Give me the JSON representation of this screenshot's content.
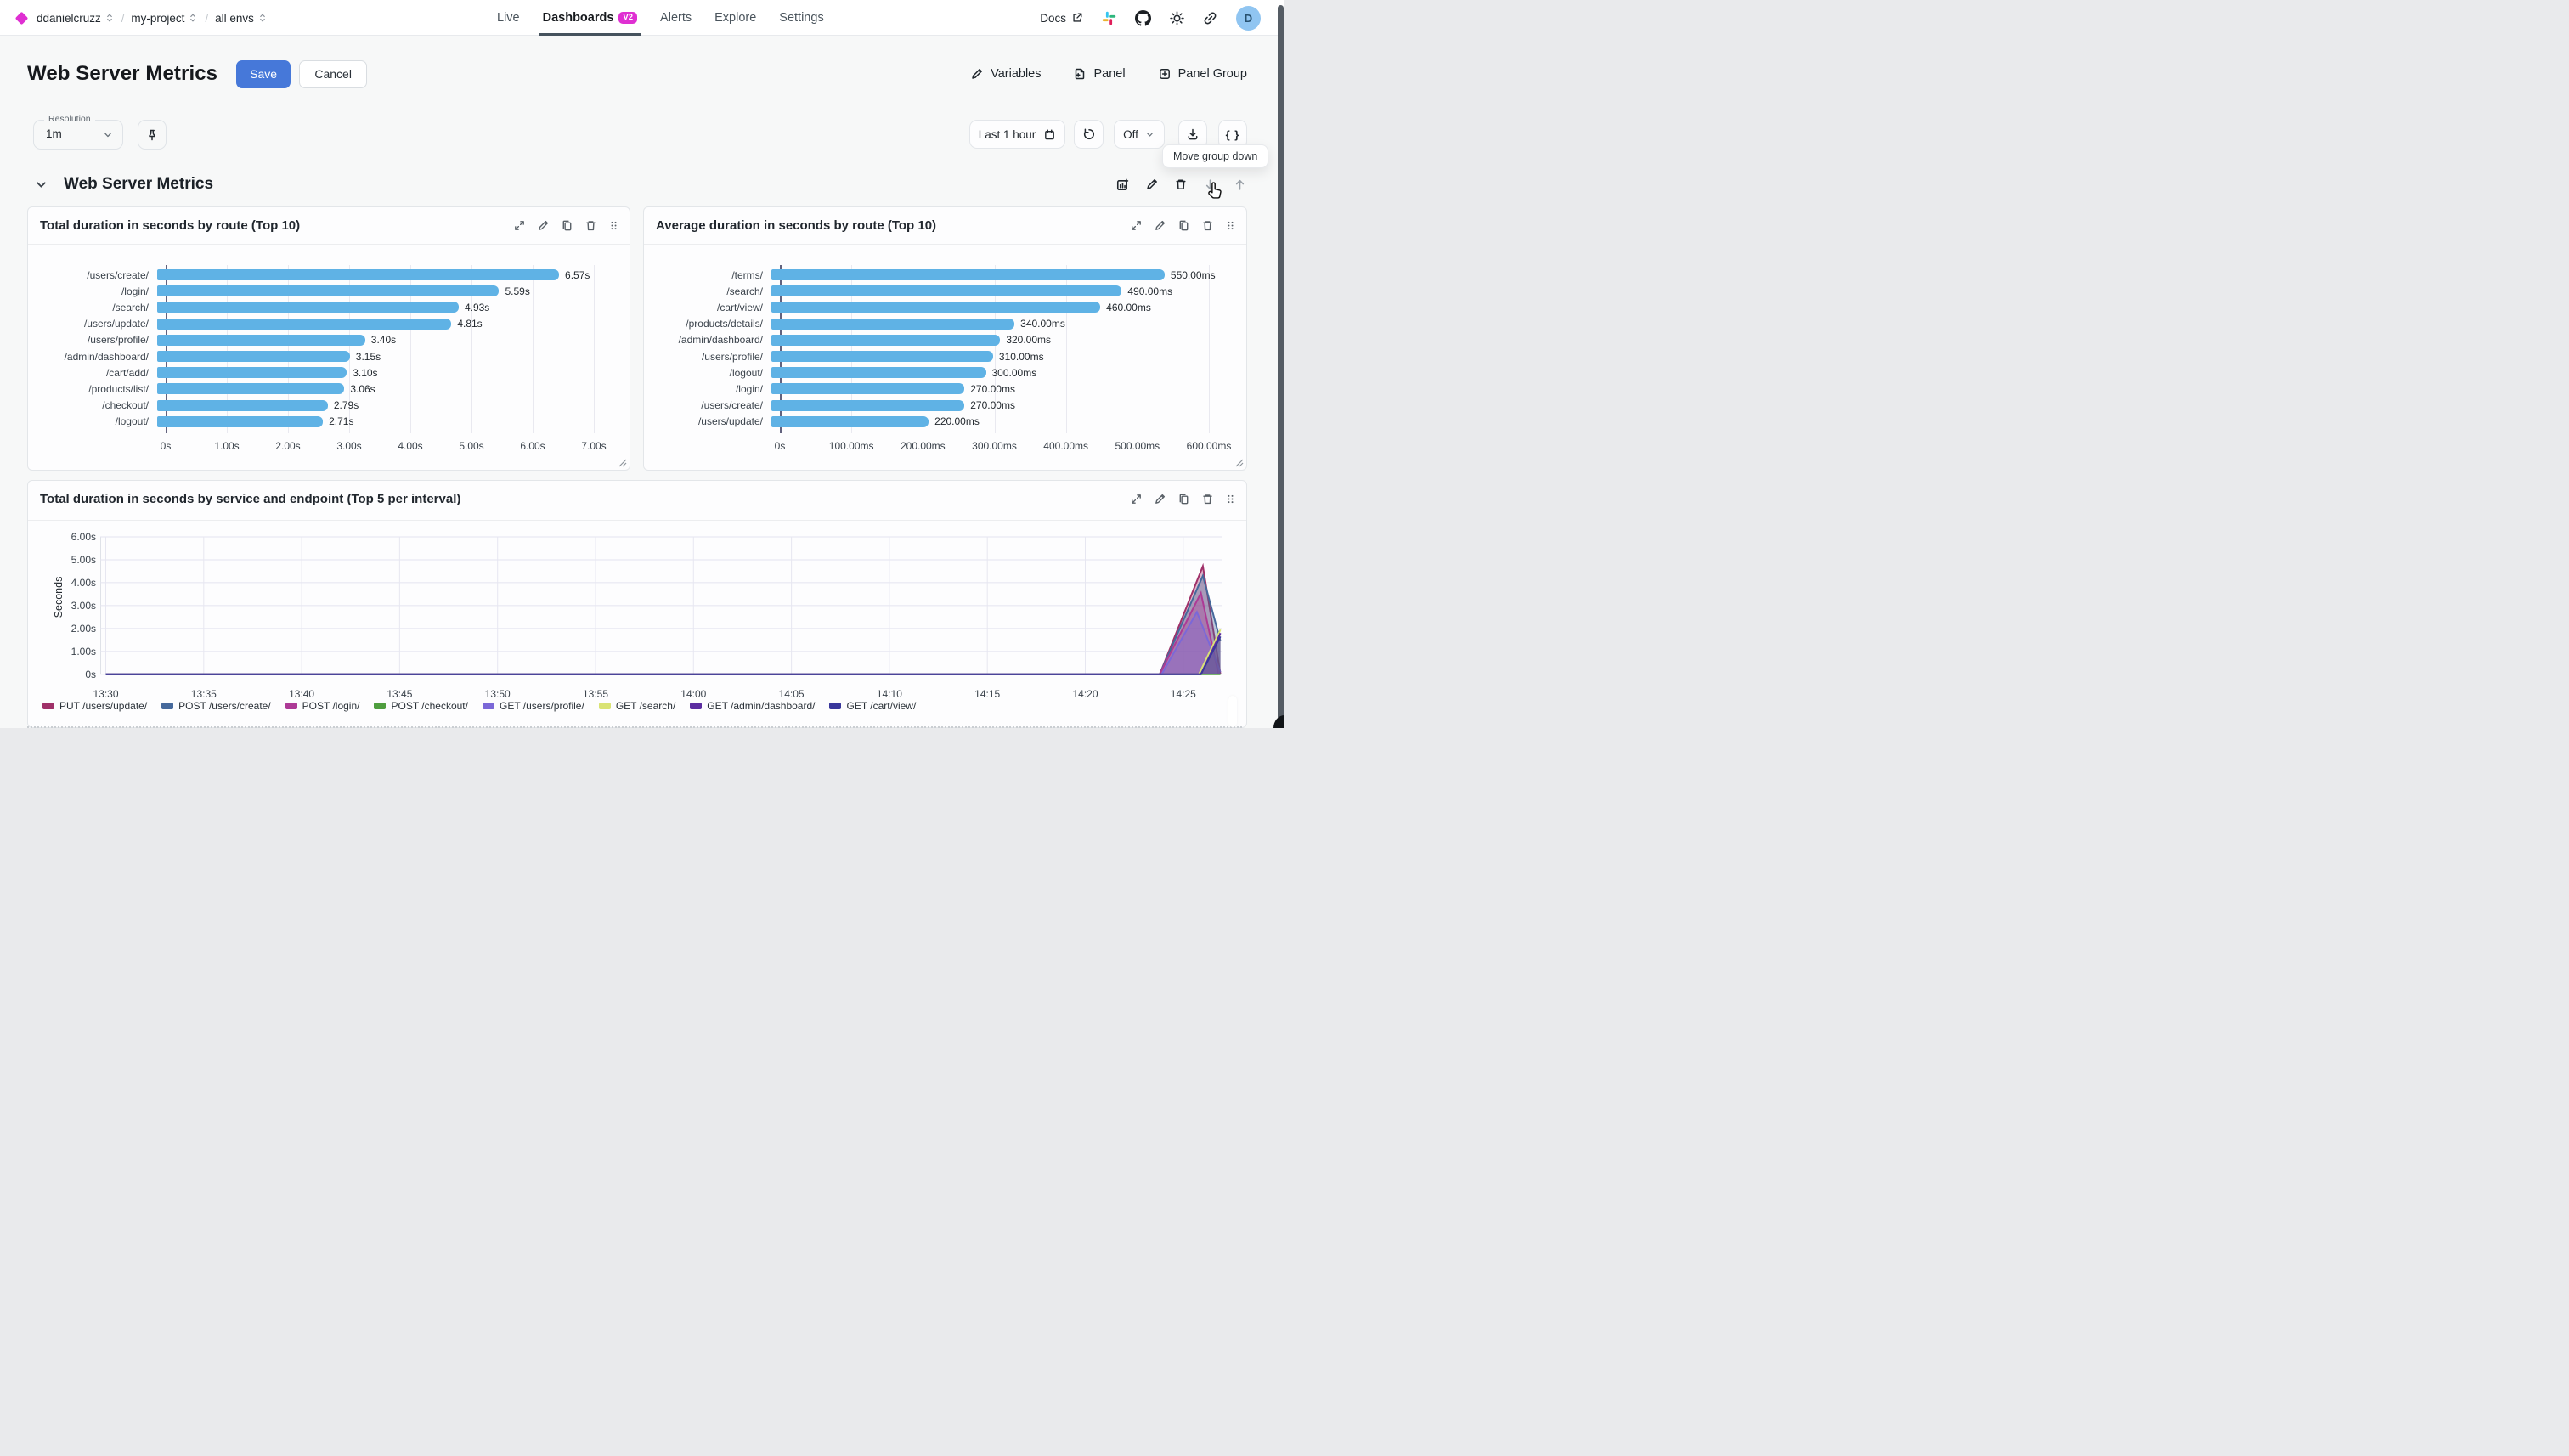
{
  "header": {
    "org": "ddanielcruzz",
    "project": "my-project",
    "env": "all envs",
    "nav": [
      {
        "label": "Live"
      },
      {
        "label": "Dashboards",
        "badge": "V2",
        "active": true
      },
      {
        "label": "Alerts"
      },
      {
        "label": "Explore"
      },
      {
        "label": "Settings"
      }
    ],
    "docs_label": "Docs",
    "avatar_initial": "D"
  },
  "title_bar": {
    "title": "Web Server Metrics",
    "save_label": "Save",
    "cancel_label": "Cancel",
    "variables_label": "Variables",
    "panel_label": "Panel",
    "panel_group_label": "Panel Group"
  },
  "controls": {
    "resolution_label": "Resolution",
    "resolution_value": "1m",
    "time_range": "Last 1 hour",
    "auto_refresh": "Off",
    "code_button": "{ }",
    "tooltip": "Move group down"
  },
  "group": {
    "title": "Web Server Metrics"
  },
  "colors": {
    "accent_magenta": "#df2fd2",
    "primary_blue": "#4678d9",
    "bar_blue": "#5fb2e5",
    "avatar_blue": "#90c5f1"
  },
  "icons": {
    "breadcrumb-sort": "updown-chevrons",
    "docs-external": "arrow-out-of-box",
    "slack": "slack-logo",
    "github": "github-logo",
    "theme": "sun",
    "share": "link",
    "pin": "pushpin",
    "calendar": "calendar",
    "refresh": "rotate-ccw",
    "download": "arrow-into-tray",
    "group-actions": [
      "add-chart",
      "pencil",
      "trash",
      "arrow-down",
      "arrow-up"
    ],
    "panel-actions": [
      "expand",
      "pencil",
      "copy",
      "trash",
      "drag-dots"
    ]
  },
  "chart_data": [
    {
      "type": "bar",
      "orientation": "horizontal",
      "title": "Total duration in seconds by route (Top 10)",
      "categories": [
        "/users/create/",
        "/login/",
        "/search/",
        "/users/update/",
        "/users/profile/",
        "/admin/dashboard/",
        "/cart/add/",
        "/products/list/",
        "/checkout/",
        "/logout/"
      ],
      "values": [
        6.57,
        5.59,
        4.93,
        4.81,
        3.4,
        3.15,
        3.1,
        3.06,
        2.79,
        2.71
      ],
      "value_labels": [
        "6.57s",
        "5.59s",
        "4.93s",
        "4.81s",
        "3.40s",
        "3.15s",
        "3.10s",
        "3.06s",
        "2.79s",
        "2.71s"
      ],
      "x_ticks": [
        0,
        1,
        2,
        3,
        4,
        5,
        6,
        7
      ],
      "x_tick_labels": [
        "0s",
        "1.00s",
        "2.00s",
        "3.00s",
        "4.00s",
        "5.00s",
        "6.00s",
        "7.00s"
      ],
      "x_max": 7,
      "bar_color": "#5fb2e5",
      "grid": true
    },
    {
      "type": "bar",
      "orientation": "horizontal",
      "title": "Average duration in seconds by route (Top 10)",
      "categories": [
        "/terms/",
        "/search/",
        "/cart/view/",
        "/products/details/",
        "/admin/dashboard/",
        "/users/profile/",
        "/logout/",
        "/login/",
        "/users/create/",
        "/users/update/"
      ],
      "values": [
        550,
        490,
        460,
        340,
        320,
        310,
        300,
        270,
        270,
        220
      ],
      "value_labels": [
        "550.00ms",
        "490.00ms",
        "460.00ms",
        "340.00ms",
        "320.00ms",
        "310.00ms",
        "300.00ms",
        "270.00ms",
        "270.00ms",
        "220.00ms"
      ],
      "x_ticks": [
        0,
        100,
        200,
        300,
        400,
        500,
        600
      ],
      "x_tick_labels": [
        "0s",
        "100.00ms",
        "200.00ms",
        "300.00ms",
        "400.00ms",
        "500.00ms",
        "600.00ms"
      ],
      "x_max": 600,
      "bar_color": "#5fb2e5",
      "grid": true
    },
    {
      "type": "area",
      "title": "Total duration in seconds by service and endpoint (Top 5 per interval)",
      "ylabel": "Seconds",
      "ylim": [
        0,
        6
      ],
      "y_ticks": [
        6,
        5,
        4,
        3,
        2,
        1,
        0
      ],
      "y_tick_labels": [
        "6.00s",
        "5.00s",
        "4.00s",
        "3.00s",
        "2.00s",
        "1.00s",
        "0s"
      ],
      "x_ticks": [
        "13:30",
        "13:35",
        "13:40",
        "13:45",
        "13:50",
        "13:55",
        "14:00",
        "14:05",
        "14:10",
        "14:15",
        "14:20",
        "14:25"
      ],
      "x_tick_interval_min": 5,
      "grid": true,
      "legend_position": "bottom",
      "series": [
        {
          "name": "PUT /users/update/",
          "color": "#a03169",
          "points": [
            [
              0,
              0
            ],
            [
              53.8,
              0
            ],
            [
              56,
              4.72
            ],
            [
              56.9,
              0
            ]
          ]
        },
        {
          "name": "POST /users/create/",
          "color": "#46699c",
          "points": [
            [
              0,
              0
            ],
            [
              53.8,
              0
            ],
            [
              56,
              4.3
            ],
            [
              56.9,
              1.45
            ]
          ]
        },
        {
          "name": "POST /login/",
          "color": "#ad3a96",
          "points": [
            [
              0,
              0
            ],
            [
              53.8,
              0
            ],
            [
              55.9,
              3.55
            ],
            [
              56.8,
              0
            ]
          ]
        },
        {
          "name": "POST /checkout/",
          "color": "#4f9e3f",
          "points": [
            [
              0,
              0
            ],
            [
              56.9,
              0
            ]
          ]
        },
        {
          "name": "GET /users/profile/",
          "color": "#7b68d8",
          "points": [
            [
              0,
              0
            ],
            [
              53.9,
              0
            ],
            [
              55.7,
              2.72
            ],
            [
              56.9,
              0.1
            ]
          ]
        },
        {
          "name": "GET /search/",
          "color": "#d9e374",
          "points": [
            [
              0,
              0
            ],
            [
              55.8,
              0
            ],
            [
              56.9,
              1.95
            ]
          ]
        },
        {
          "name": "GET /admin/dashboard/",
          "color": "#5c2da1",
          "points": [
            [
              0,
              0
            ],
            [
              55.9,
              0
            ],
            [
              56.9,
              1.8
            ]
          ]
        },
        {
          "name": "GET /cart/view/",
          "color": "#39379c",
          "points": [
            [
              0,
              0
            ],
            [
              55.9,
              0
            ],
            [
              56.9,
              1.65
            ]
          ]
        }
      ]
    }
  ]
}
